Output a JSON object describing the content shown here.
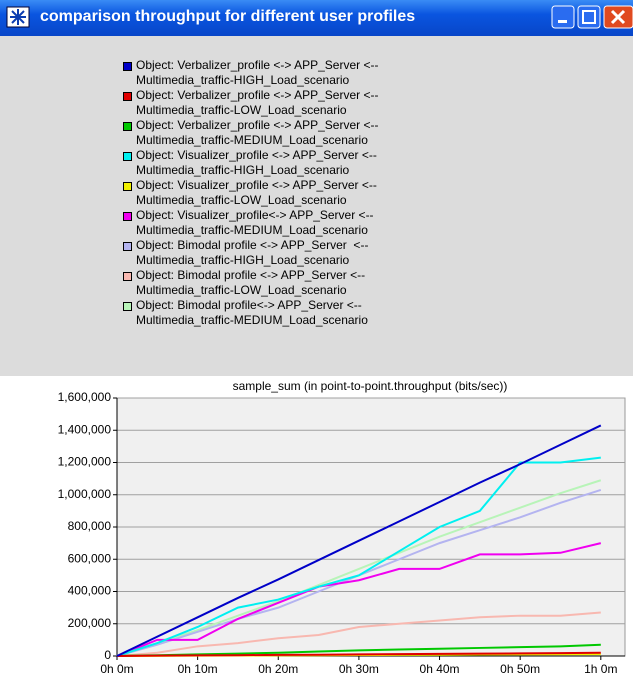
{
  "window_title": "comparison throughput for different user profiles",
  "chart_data": {
    "type": "line",
    "title": "sample_sum (in point-to-point.throughput (bits/sec))",
    "x": [
      0,
      5,
      10,
      15,
      20,
      25,
      30,
      35,
      40,
      45,
      50,
      55,
      60
    ],
    "xlim": [
      0,
      63
    ],
    "xticks": [
      {
        "value": 0,
        "label": "0h 0m"
      },
      {
        "value": 10,
        "label": "0h 10m"
      },
      {
        "value": 20,
        "label": "0h 20m"
      },
      {
        "value": 30,
        "label": "0h 30m"
      },
      {
        "value": 40,
        "label": "0h 40m"
      },
      {
        "value": 50,
        "label": "0h 50m"
      },
      {
        "value": 60,
        "label": "1h 0m"
      }
    ],
    "ylim": [
      0,
      1600000
    ],
    "yticks": [
      {
        "value": 0,
        "label": "0"
      },
      {
        "value": 200000,
        "label": "200,000"
      },
      {
        "value": 400000,
        "label": "400,000"
      },
      {
        "value": 600000,
        "label": "600,000"
      },
      {
        "value": 800000,
        "label": "800,000"
      },
      {
        "value": 1000000,
        "label": "1,000,000"
      },
      {
        "value": 1200000,
        "label": "1,200,000"
      },
      {
        "value": 1400000,
        "label": "1,400,000"
      },
      {
        "value": 1600000,
        "label": "1,600,000"
      }
    ],
    "grid": true,
    "series": [
      {
        "name": "Object: Verbalizer_profile <-> APP_Server <--\nMultimedia_traffic-HIGH_Load_scenario",
        "color": "#0000c8",
        "values": [
          0,
          120000,
          240000,
          360000,
          475000,
          595000,
          715000,
          835000,
          955000,
          1075000,
          1190000,
          1310000,
          1430000
        ]
      },
      {
        "name": "Object: Verbalizer_profile <-> APP_Server <--\nMultimedia_traffic-LOW_Load_scenario",
        "color": "#e00000",
        "values": [
          0,
          2000,
          4000,
          5000,
          7000,
          8000,
          10000,
          12000,
          13000,
          15000,
          16000,
          18000,
          20000
        ]
      },
      {
        "name": "Object: Verbalizer_profile <-> APP_Server <--\nMultimedia_traffic-MEDIUM_Load_scenario",
        "color": "#00c800",
        "values": [
          0,
          5000,
          10000,
          15000,
          20000,
          28000,
          35000,
          40000,
          45000,
          50000,
          55000,
          60000,
          70000
        ]
      },
      {
        "name": "Object: Visualizer_profile <-> APP_Server <--\nMultimedia_traffic-HIGH_Load_scenario",
        "color": "#00f0f0",
        "values": [
          0,
          80000,
          180000,
          300000,
          350000,
          430000,
          500000,
          650000,
          800000,
          900000,
          1200000,
          1200000,
          1230000
        ]
      },
      {
        "name": "Object: Visualizer_profile <-> APP_Server <--\nMultimedia_traffic-LOW_Load_scenario",
        "color": "#f0f000",
        "values": [
          0,
          1000,
          2000,
          3000,
          4000,
          5000,
          6000,
          7000,
          8000,
          9000,
          10000,
          11000,
          12000
        ]
      },
      {
        "name": "Object: Visualizer_profile<-> APP_Server <--\nMultimedia_traffic-MEDIUM_Load_scenario",
        "color": "#f000f0",
        "values": [
          0,
          100000,
          100000,
          230000,
          330000,
          430000,
          470000,
          540000,
          540000,
          630000,
          630000,
          640000,
          700000
        ]
      },
      {
        "name": "Object: Bimodal profile <-> APP_Server  <--\nMultimedia_traffic-HIGH_Load_scenario",
        "color": "#b4b4f0",
        "values": [
          0,
          70000,
          150000,
          230000,
          300000,
          400000,
          500000,
          600000,
          700000,
          780000,
          860000,
          950000,
          1030000
        ]
      },
      {
        "name": "Object: Bimodal profile <-> APP_Server <--\nMultimedia_traffic-LOW_Load_scenario",
        "color": "#f8b8b0",
        "values": [
          0,
          20000,
          60000,
          80000,
          110000,
          130000,
          180000,
          200000,
          220000,
          240000,
          250000,
          250000,
          270000
        ]
      },
      {
        "name": "Object: Bimodal profile<-> APP_Server <--\nMultimedia_traffic-MEDIUM_Load_scenario",
        "color": "#b8f4b8",
        "values": [
          0,
          80000,
          160000,
          250000,
          340000,
          440000,
          540000,
          640000,
          740000,
          830000,
          920000,
          1010000,
          1090000
        ]
      }
    ]
  }
}
